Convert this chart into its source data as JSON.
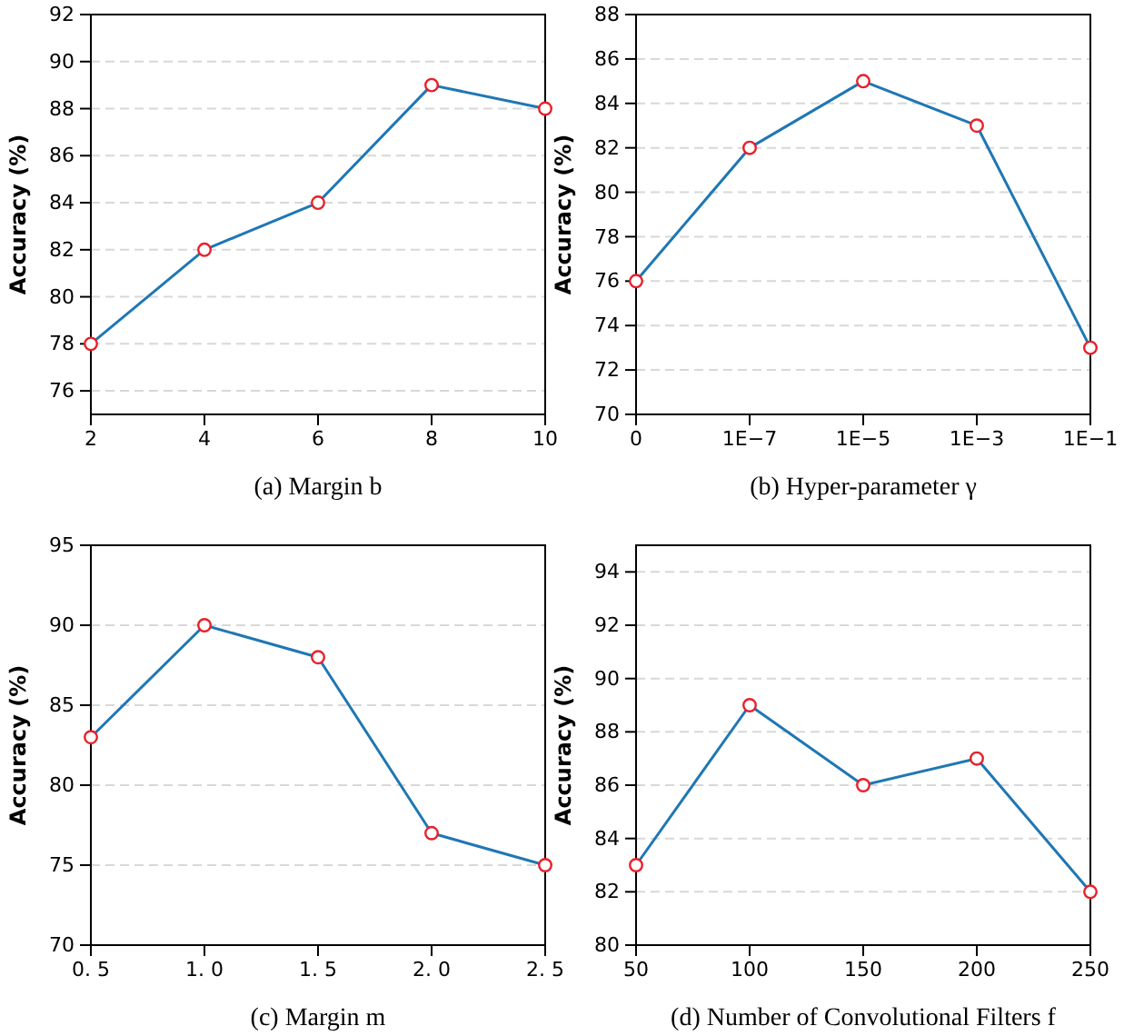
{
  "chart_data": [
    {
      "type": "line",
      "xlabel": "(a) Margin b",
      "ylabel": "Accuracy (%)",
      "x": [
        2,
        4,
        6,
        8,
        10
      ],
      "xlim": [
        2,
        10
      ],
      "xticks": [
        2,
        4,
        6,
        8,
        10
      ],
      "ylim": [
        75,
        92
      ],
      "yticks": [
        76,
        78,
        80,
        82,
        84,
        86,
        88,
        90,
        92
      ],
      "grid": "y",
      "marker": "circle",
      "series": [
        {
          "color": "#1f77b4",
          "values": [
            78,
            82,
            84,
            89,
            88
          ]
        }
      ]
    },
    {
      "type": "line",
      "xlabel": "(b) Hyper-parameter γ",
      "ylabel": "Accuracy (%)",
      "categories": [
        "0",
        "1E−7",
        "1E−5",
        "1E−3",
        "1E−1"
      ],
      "ylim": [
        70,
        88
      ],
      "yticks": [
        70,
        72,
        74,
        76,
        78,
        80,
        82,
        84,
        86,
        88
      ],
      "grid": "y",
      "marker": "circle",
      "series": [
        {
          "color": "#1f77b4",
          "values": [
            76,
            82,
            85,
            83,
            73
          ]
        }
      ]
    },
    {
      "type": "line",
      "xlabel": "(c) Margin m",
      "ylabel": "Accuracy (%)",
      "categories": [
        "0. 5",
        "1. 0",
        "1. 5",
        "2. 0",
        "2. 5"
      ],
      "ylim": [
        70,
        95
      ],
      "yticks": [
        70,
        75,
        80,
        85,
        90,
        95
      ],
      "grid": "y",
      "marker": "circle",
      "series": [
        {
          "color": "#1f77b4",
          "values": [
            83,
            90,
            88,
            77,
            75
          ]
        }
      ]
    },
    {
      "type": "line",
      "xlabel": "(d) Number of Convolutional Filters f",
      "ylabel": "Accuracy (%)",
      "x": [
        50,
        100,
        150,
        200,
        250
      ],
      "xlim": [
        50,
        250
      ],
      "xticks": [
        50,
        100,
        150,
        200,
        250
      ],
      "ylim": [
        80,
        95
      ],
      "yticks": [
        80,
        82,
        84,
        86,
        88,
        90,
        92,
        94
      ],
      "grid": "y",
      "marker": "circle",
      "series": [
        {
          "color": "#1f77b4",
          "values": [
            83,
            89,
            86,
            87,
            82
          ]
        }
      ]
    }
  ]
}
